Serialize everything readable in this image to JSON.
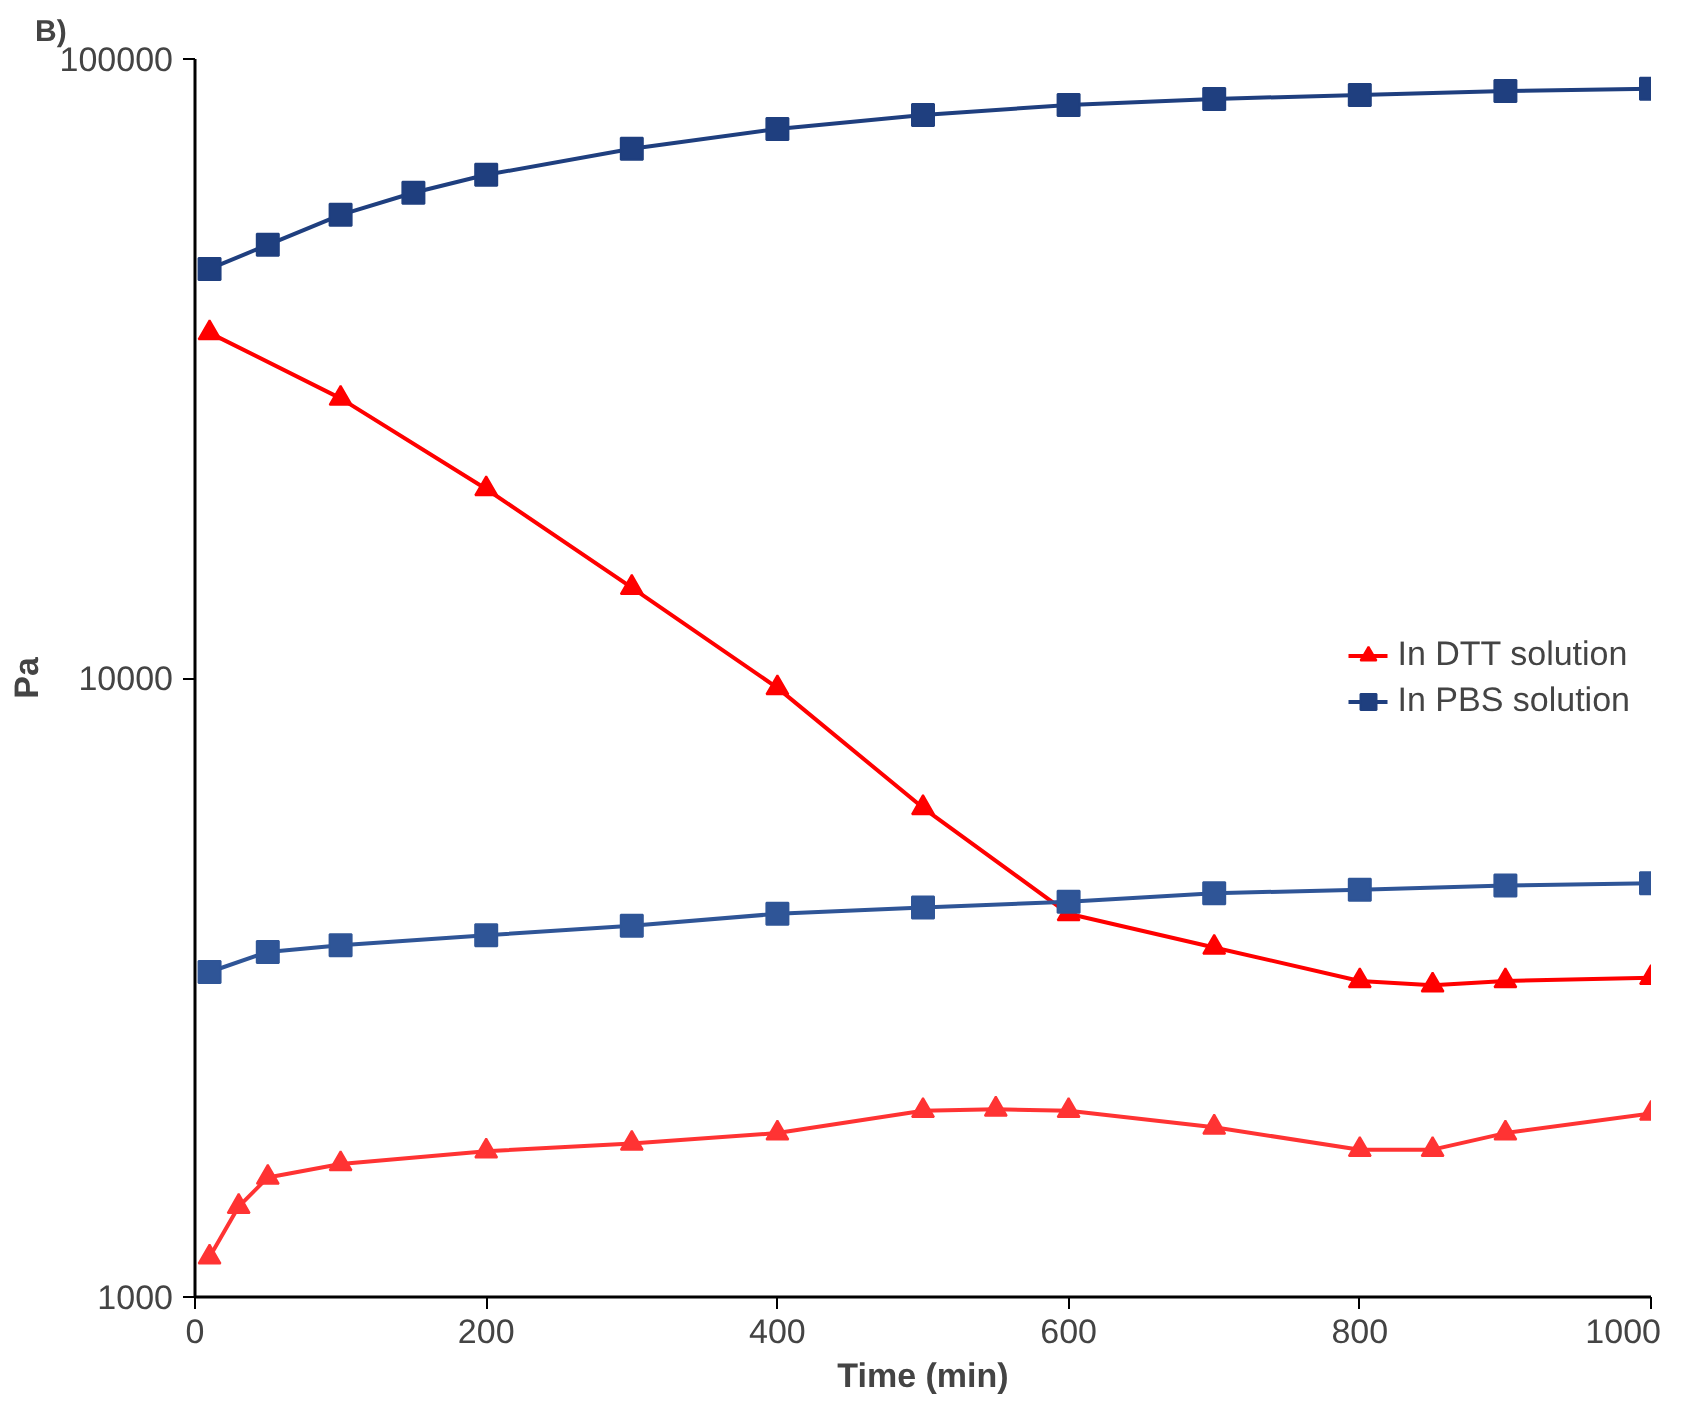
{
  "chart_data": {
    "type": "line",
    "xlabel": "Time (min)",
    "ylabel": "Pa",
    "annotations": [
      "B)"
    ],
    "xlim": [
      0,
      1000
    ],
    "xticks": [
      0,
      200,
      400,
      600,
      800,
      1000
    ],
    "ylim": [
      1000,
      100000
    ],
    "yticks": [
      1000,
      10000,
      100000
    ],
    "log": true,
    "grid": false,
    "legend": "right",
    "series": [
      {
        "name": "In DTT solution",
        "color": "#ff0000",
        "marker": "triangle",
        "x": [
          10,
          100,
          200,
          300,
          400,
          500,
          600,
          700,
          800,
          850,
          900,
          1000
        ],
        "values": [
          36100,
          28300,
          20200,
          14000,
          9640,
          6170,
          4160,
          3670,
          3240,
          3190,
          3240,
          3280
        ]
      },
      {
        "name": "In PBS solution",
        "color": "#1f3f7f",
        "marker": "square",
        "x": [
          10,
          50,
          100,
          150,
          200,
          300,
          400,
          500,
          600,
          700,
          800,
          900,
          1000
        ],
        "values": [
          45800,
          50100,
          56000,
          60800,
          65000,
          71600,
          77100,
          81200,
          84300,
          86200,
          87500,
          88800,
          89500
        ]
      },
      {
        "color": "#ff3333",
        "marker": "triangle",
        "x": [
          10,
          30,
          50,
          100,
          200,
          300,
          400,
          500,
          550,
          600,
          700,
          800,
          850,
          900,
          1000
        ],
        "values": [
          1160,
          1400,
          1560,
          1640,
          1720,
          1770,
          1840,
          2000,
          2010,
          2000,
          1880,
          1730,
          1730,
          1840,
          1980
        ]
      },
      {
        "color": "#2f5597",
        "marker": "square",
        "x": [
          10,
          50,
          100,
          200,
          300,
          400,
          500,
          600,
          700,
          800,
          900,
          1000
        ],
        "values": [
          3350,
          3610,
          3700,
          3840,
          3980,
          4160,
          4260,
          4350,
          4490,
          4550,
          4620,
          4660
        ]
      }
    ]
  }
}
